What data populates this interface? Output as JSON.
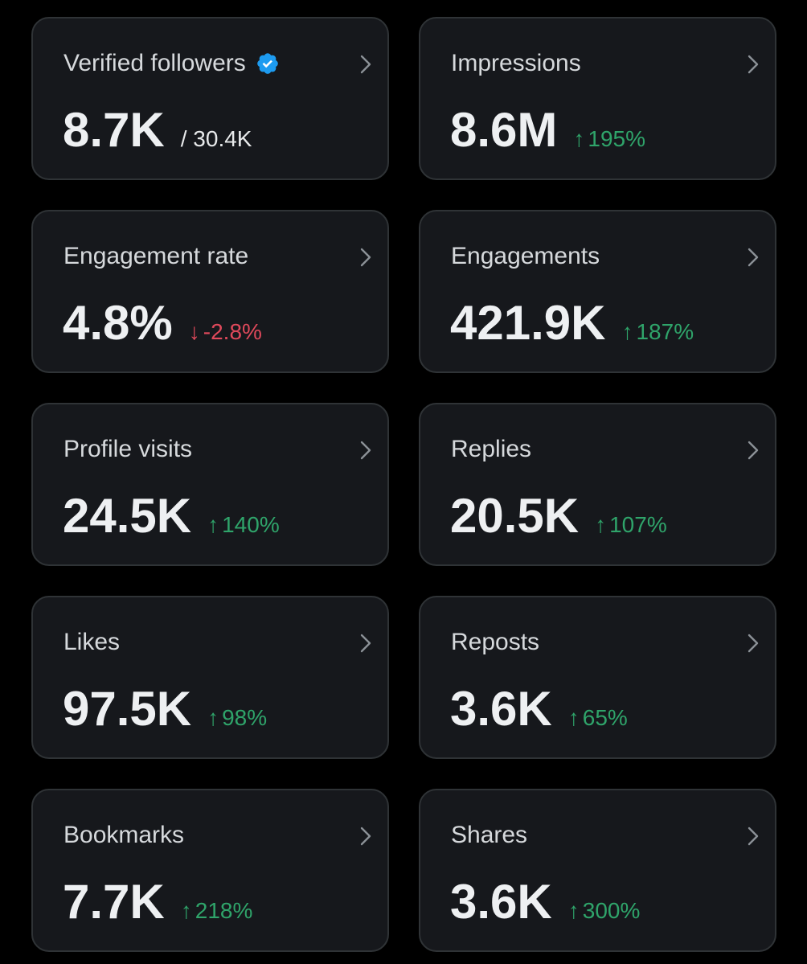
{
  "colors": {
    "background": "#000000",
    "card": "#16181c",
    "card_border": "#2f3336",
    "text_primary": "#eef0f2",
    "text_secondary": "#d6d9dc",
    "positive": "#2fa46a",
    "negative": "#e0495b",
    "verified_badge": "#1d9bf0"
  },
  "metrics": {
    "verified_followers": {
      "title": "Verified followers",
      "icon": "verified-badge-icon",
      "value": "8.7K",
      "sub_value": "/ 30.4K"
    },
    "impressions": {
      "title": "Impressions",
      "value": "8.6M",
      "delta_arrow": "↑",
      "delta": "195%"
    },
    "engagement_rate": {
      "title": "Engagement rate",
      "value": "4.8%",
      "delta_arrow": "↓",
      "delta": "-2.8%"
    },
    "engagements": {
      "title": "Engagements",
      "value": "421.9K",
      "delta_arrow": "↑",
      "delta": "187%"
    },
    "profile_visits": {
      "title": "Profile visits",
      "value": "24.5K",
      "delta_arrow": "↑",
      "delta": "140%"
    },
    "replies": {
      "title": "Replies",
      "value": "20.5K",
      "delta_arrow": "↑",
      "delta": "107%"
    },
    "likes": {
      "title": "Likes",
      "value": "97.5K",
      "delta_arrow": "↑",
      "delta": "98%"
    },
    "reposts": {
      "title": "Reposts",
      "value": "3.6K",
      "delta_arrow": "↑",
      "delta": "65%"
    },
    "bookmarks": {
      "title": "Bookmarks",
      "value": "7.7K",
      "delta_arrow": "↑",
      "delta": "218%"
    },
    "shares": {
      "title": "Shares",
      "value": "3.6K",
      "delta_arrow": "↑",
      "delta": "300%"
    }
  }
}
